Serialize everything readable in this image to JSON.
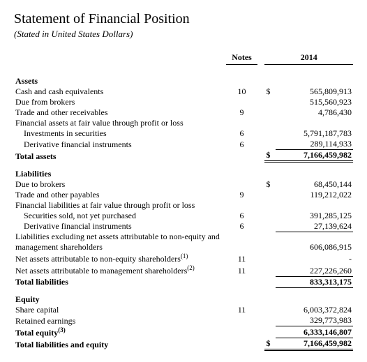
{
  "title": "Statement of Financial Position",
  "subtitle": "(Stated in United States Dollars)",
  "headers": {
    "notes": "Notes",
    "year": "2014"
  },
  "currency": "$",
  "assets": {
    "heading": "Assets",
    "cash": {
      "label": "Cash and cash equivalents",
      "note": "10",
      "value": "565,809,913"
    },
    "brokers": {
      "label": "Due from brokers",
      "note": "",
      "value": "515,560,923"
    },
    "trade": {
      "label": "Trade and other receivables",
      "note": "9",
      "value": "4,786,430"
    },
    "fvtpl": {
      "label": "Financial assets at fair value through profit or loss",
      "note": "",
      "value": ""
    },
    "inv": {
      "label": "Investments in securities",
      "note": "6",
      "value": "5,791,187,783"
    },
    "deriv": {
      "label": "Derivative financial instruments",
      "note": "6",
      "value": "289,114,933"
    },
    "total": {
      "label": "Total assets",
      "note": "",
      "value": "7,166,459,982"
    }
  },
  "liabilities": {
    "heading": "Liabilities",
    "brokers": {
      "label": "Due to brokers",
      "note": "",
      "value": "68,450,144"
    },
    "trade": {
      "label": "Trade and other payables",
      "note": "9",
      "value": "119,212,022"
    },
    "fvtpl": {
      "label": "Financial liabilities at fair value through profit or loss",
      "note": "",
      "value": ""
    },
    "short": {
      "label": "Securities sold, not yet purchased",
      "note": "6",
      "value": "391,285,125"
    },
    "deriv": {
      "label": "Derivative financial instruments",
      "note": "6",
      "value": "27,139,624"
    },
    "exnet": {
      "label": "Liabilities excluding net assets attributable to non-equity and management shareholders",
      "note": "",
      "value": "606,086,915"
    },
    "noneq": {
      "label": "Net assets attributable to non-equity shareholders",
      "sup": "(1)",
      "note": "11",
      "value": "-"
    },
    "mgmt": {
      "label": "Net assets attributable to management shareholders",
      "sup": "(2)",
      "note": "11",
      "value": "227,226,260"
    },
    "total": {
      "label": "Total liabilities",
      "note": "",
      "value": "833,313,175"
    }
  },
  "equity": {
    "heading": "Equity",
    "share": {
      "label": "Share capital",
      "note": "11",
      "value": "6,003,372,824"
    },
    "retained": {
      "label": "Retained earnings",
      "note": "",
      "value": "329,773,983"
    },
    "total": {
      "label": "Total equity",
      "sup": "(3)",
      "note": "",
      "value": "6,333,146,807"
    },
    "grand": {
      "label": "Total liabilities and equity",
      "note": "",
      "value": "7,166,459,982"
    }
  },
  "colors": {
    "text": "#000000",
    "background": "#ffffff",
    "rule": "#000000"
  }
}
